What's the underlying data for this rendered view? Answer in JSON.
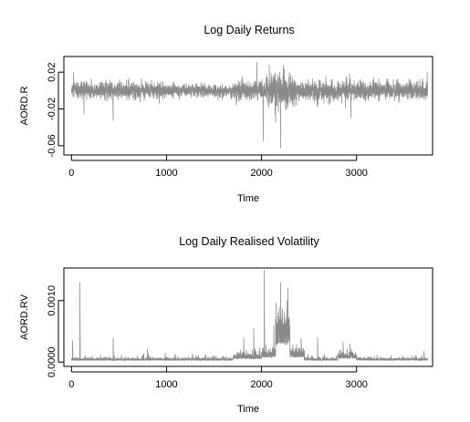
{
  "chart_data": [
    {
      "type": "line",
      "title": "Log Daily Returns",
      "xlabel": "Time",
      "ylabel": "AORD.R",
      "xlim": [
        -80,
        3800
      ],
      "ylim": [
        -0.07,
        0.037
      ],
      "x_ticks": [
        0,
        1000,
        2000,
        3000
      ],
      "x_tick_labels": [
        "0",
        "1000",
        "2000",
        "3000"
      ],
      "y_ticks": [
        -0.06,
        -0.02,
        0.02
      ],
      "y_tick_labels": [
        "-0.06",
        "-0.02",
        "0.02"
      ],
      "grid": false,
      "color": "#8a8a8a",
      "series": [
        {
          "n_obs": 3750,
          "baseline": 0.0,
          "noise": 0.0045,
          "volatility_regimes": [
            {
              "x": [
                0,
                1000
              ],
              "scale": 1.0
            },
            {
              "x": [
                1000,
                1700
              ],
              "scale": 0.75
            },
            {
              "x": [
                1700,
                2050
              ],
              "scale": 1.25
            },
            {
              "x": [
                2050,
                2350
              ],
              "scale": 2.0
            },
            {
              "x": [
                2350,
                3000
              ],
              "scale": 1.2
            },
            {
              "x": [
                3000,
                3750
              ],
              "scale": 1.1
            }
          ],
          "spikes": [
            {
              "x": 20,
              "y": 0.02
            },
            {
              "x": 130,
              "y": -0.026
            },
            {
              "x": 440,
              "y": -0.033
            },
            {
              "x": 1950,
              "y": 0.031
            },
            {
              "x": 2020,
              "y": -0.055
            },
            {
              "x": 2080,
              "y": 0.028
            },
            {
              "x": 2150,
              "y": -0.035
            },
            {
              "x": 2200,
              "y": -0.063
            },
            {
              "x": 2230,
              "y": 0.028
            },
            {
              "x": 2290,
              "y": 0.02
            },
            {
              "x": 2940,
              "y": -0.03
            },
            {
              "x": 3740,
              "y": 0.02
            }
          ]
        }
      ]
    },
    {
      "type": "line",
      "title": "Log Daily Realised Volatility",
      "xlabel": "Time",
      "ylabel": "AORD.RV",
      "xlim": [
        -80,
        3800
      ],
      "ylim": [
        -7e-05,
        0.00153
      ],
      "x_ticks": [
        0,
        1000,
        2000,
        3000
      ],
      "x_tick_labels": [
        "0",
        "1000",
        "2000",
        "3000"
      ],
      "y_ticks": [
        0.0,
        0.001
      ],
      "y_tick_labels": [
        "0.0000",
        "0.0010"
      ],
      "grid": false,
      "color": "#8a8a8a",
      "series": [
        {
          "n_obs": 3750,
          "baseline": 4e-05,
          "noise": 3e-05,
          "level_regimes": [
            {
              "x": [
                1700,
                2000
              ],
              "level": 8e-05
            },
            {
              "x": [
                2000,
                2150
              ],
              "level": 0.00012
            },
            {
              "x": [
                2150,
                2300
              ],
              "level": 0.00045
            },
            {
              "x": [
                2300,
                2450
              ],
              "level": 0.00012
            },
            {
              "x": [
                2800,
                3000
              ],
              "level": 9e-05
            }
          ],
          "spikes": [
            {
              "x": 10,
              "y": 0.00035
            },
            {
              "x": 90,
              "y": 0.0013
            },
            {
              "x": 440,
              "y": 0.0004
            },
            {
              "x": 800,
              "y": 0.00022
            },
            {
              "x": 1810,
              "y": 0.0004
            },
            {
              "x": 1920,
              "y": 0.00055
            },
            {
              "x": 2030,
              "y": 0.0015
            },
            {
              "x": 2130,
              "y": 0.0006
            },
            {
              "x": 2200,
              "y": 0.0013
            },
            {
              "x": 2240,
              "y": 0.0008
            },
            {
              "x": 2590,
              "y": 0.0004
            },
            {
              "x": 2930,
              "y": 0.0003
            },
            {
              "x": 3710,
              "y": 0.00018
            }
          ]
        }
      ]
    }
  ]
}
